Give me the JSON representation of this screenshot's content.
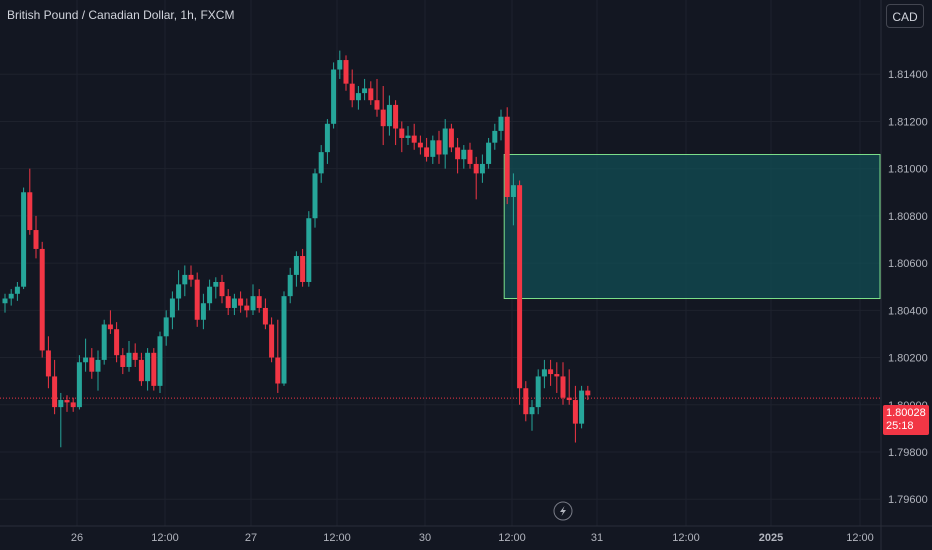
{
  "header": {
    "symbol": "British Pound / Canadian Dollar, 1h, FXCM"
  },
  "currency_button": "CAD",
  "current_price": {
    "value": "1.80028",
    "countdown": "25:18"
  },
  "colors": {
    "up": "#26a69a",
    "down": "#f23645",
    "zone_fill": "#124e54",
    "zone_border": "#7ce08a",
    "background": "#131722"
  },
  "chart_data": {
    "type": "candlestick",
    "x_tick_labels": [
      "26",
      "12:00",
      "27",
      "12:00",
      "30",
      "12:00",
      "31",
      "12:00",
      "2025",
      "12:00"
    ],
    "y_tick_labels": [
      "1.81400",
      "1.81200",
      "1.81000",
      "1.80800",
      "1.80600",
      "1.80400",
      "1.80200",
      "1.80000",
      "1.79800",
      "1.79600"
    ],
    "ylim": [
      1.7955,
      1.816
    ],
    "last_price_line": 1.80028,
    "zone": {
      "top": 1.8106,
      "bottom": 1.8045,
      "start_candle": 81
    },
    "candles": [
      [
        1.8043,
        1.8047,
        1.8039,
        1.8045
      ],
      [
        1.8045,
        1.8049,
        1.8042,
        1.8047
      ],
      [
        1.8047,
        1.8052,
        1.8044,
        1.805
      ],
      [
        1.805,
        1.8092,
        1.8049,
        1.809
      ],
      [
        1.809,
        1.81,
        1.8072,
        1.8074
      ],
      [
        1.8074,
        1.808,
        1.8062,
        1.8066
      ],
      [
        1.8066,
        1.8069,
        1.802,
        1.8023
      ],
      [
        1.8023,
        1.8029,
        1.8007,
        1.8012
      ],
      [
        1.8012,
        1.8019,
        1.7996,
        1.7999
      ],
      [
        1.7999,
        1.8005,
        1.7982,
        1.8002
      ],
      [
        1.8002,
        1.8004,
        1.7997,
        1.8001
      ],
      [
        1.8001,
        1.8003,
        1.7997,
        1.7999
      ],
      [
        1.7999,
        1.8021,
        1.7998,
        1.8018
      ],
      [
        1.8018,
        1.8028,
        1.8014,
        1.802
      ],
      [
        1.802,
        1.8024,
        1.8011,
        1.8014
      ],
      [
        1.8014,
        1.8023,
        1.8006,
        1.8019
      ],
      [
        1.8019,
        1.8036,
        1.8017,
        1.8034
      ],
      [
        1.8034,
        1.804,
        1.803,
        1.8032
      ],
      [
        1.8032,
        1.8035,
        1.8018,
        1.8021
      ],
      [
        1.8021,
        1.8024,
        1.8013,
        1.8016
      ],
      [
        1.8016,
        1.8027,
        1.8014,
        1.8022
      ],
      [
        1.8022,
        1.8026,
        1.8016,
        1.8019
      ],
      [
        1.8019,
        1.8022,
        1.8008,
        1.801
      ],
      [
        1.801,
        1.8024,
        1.8006,
        1.8022
      ],
      [
        1.8022,
        1.8024,
        1.8006,
        1.8008
      ],
      [
        1.8008,
        1.8031,
        1.8005,
        1.8029
      ],
      [
        1.8029,
        1.804,
        1.8025,
        1.8037
      ],
      [
        1.8037,
        1.8048,
        1.8032,
        1.8045
      ],
      [
        1.8045,
        1.8057,
        1.804,
        1.8051
      ],
      [
        1.8051,
        1.8059,
        1.8046,
        1.8055
      ],
      [
        1.8055,
        1.8059,
        1.805,
        1.8053
      ],
      [
        1.8053,
        1.8056,
        1.8033,
        1.8036
      ],
      [
        1.8036,
        1.8047,
        1.8032,
        1.8043
      ],
      [
        1.8043,
        1.8053,
        1.804,
        1.805
      ],
      [
        1.805,
        1.8054,
        1.8045,
        1.8052
      ],
      [
        1.8052,
        1.8055,
        1.8043,
        1.8046
      ],
      [
        1.8046,
        1.8049,
        1.8038,
        1.8041
      ],
      [
        1.8041,
        1.8047,
        1.8038,
        1.8045
      ],
      [
        1.8045,
        1.8048,
        1.8039,
        1.8042
      ],
      [
        1.8042,
        1.8045,
        1.8037,
        1.804
      ],
      [
        1.804,
        1.8051,
        1.8038,
        1.8046
      ],
      [
        1.8046,
        1.8049,
        1.8039,
        1.8041
      ],
      [
        1.8041,
        1.8045,
        1.8032,
        1.8034
      ],
      [
        1.8034,
        1.8037,
        1.8018,
        1.802
      ],
      [
        1.802,
        1.8036,
        1.8005,
        1.8009
      ],
      [
        1.8009,
        1.8048,
        1.8008,
        1.8046
      ],
      [
        1.8046,
        1.8058,
        1.8043,
        1.8055
      ],
      [
        1.8055,
        1.8065,
        1.805,
        1.8063
      ],
      [
        1.8063,
        1.8066,
        1.805,
        1.8052
      ],
      [
        1.8052,
        1.8082,
        1.805,
        1.8079
      ],
      [
        1.8079,
        1.81,
        1.8075,
        1.8098
      ],
      [
        1.8098,
        1.811,
        1.8094,
        1.8107
      ],
      [
        1.8107,
        1.8121,
        1.8102,
        1.8119
      ],
      [
        1.8119,
        1.8145,
        1.8117,
        1.8142
      ],
      [
        1.8142,
        1.815,
        1.8138,
        1.8146
      ],
      [
        1.8146,
        1.8148,
        1.8133,
        1.8136
      ],
      [
        1.8136,
        1.8142,
        1.8126,
        1.8129
      ],
      [
        1.8129,
        1.8135,
        1.8125,
        1.8132
      ],
      [
        1.8132,
        1.8138,
        1.8129,
        1.8134
      ],
      [
        1.8134,
        1.8137,
        1.8127,
        1.8129
      ],
      [
        1.8129,
        1.8138,
        1.8122,
        1.8125
      ],
      [
        1.8125,
        1.8135,
        1.811,
        1.8118
      ],
      [
        1.8118,
        1.8131,
        1.8114,
        1.8127
      ],
      [
        1.8127,
        1.8129,
        1.811,
        1.8117
      ],
      [
        1.8117,
        1.812,
        1.8107,
        1.8113
      ],
      [
        1.8113,
        1.8118,
        1.811,
        1.8114
      ],
      [
        1.8114,
        1.8119,
        1.8108,
        1.8111
      ],
      [
        1.8111,
        1.8114,
        1.8106,
        1.8109
      ],
      [
        1.8109,
        1.8113,
        1.8103,
        1.8105
      ],
      [
        1.8105,
        1.8114,
        1.8102,
        1.8112
      ],
      [
        1.8112,
        1.8116,
        1.8102,
        1.8106
      ],
      [
        1.8106,
        1.8121,
        1.81,
        1.8117
      ],
      [
        1.8117,
        1.8119,
        1.8107,
        1.8109
      ],
      [
        1.8109,
        1.8113,
        1.8098,
        1.8104
      ],
      [
        1.8104,
        1.811,
        1.81,
        1.8108
      ],
      [
        1.8108,
        1.8111,
        1.81,
        1.8102
      ],
      [
        1.8102,
        1.8105,
        1.8087,
        1.8098
      ],
      [
        1.8098,
        1.8106,
        1.8094,
        1.8102
      ],
      [
        1.8102,
        1.8113,
        1.81,
        1.8111
      ],
      [
        1.8111,
        1.8119,
        1.8108,
        1.8116
      ],
      [
        1.8116,
        1.8125,
        1.8112,
        1.8122
      ],
      [
        1.8122,
        1.8126,
        1.8085,
        1.8088
      ],
      [
        1.8088,
        1.8098,
        1.8076,
        1.8093
      ],
      [
        1.8093,
        1.8095,
        1.8,
        1.8007
      ],
      [
        1.8007,
        1.801,
        1.7993,
        1.7996
      ],
      [
        1.7996,
        1.8002,
        1.7989,
        1.7999
      ],
      [
        1.7999,
        1.8015,
        1.7996,
        1.8012
      ],
      [
        1.8012,
        1.8019,
        1.8007,
        1.8015
      ],
      [
        1.8015,
        1.8019,
        1.8008,
        1.8013
      ],
      [
        1.8013,
        1.8018,
        1.8005,
        1.8012
      ],
      [
        1.8012,
        1.8018,
        1.8,
        1.8003
      ],
      [
        1.8003,
        1.8015,
        1.8,
        1.8002
      ],
      [
        1.8002,
        1.8008,
        1.7984,
        1.7992
      ],
      [
        1.7992,
        1.8008,
        1.799,
        1.8006
      ],
      [
        1.8006,
        1.8008,
        1.8002,
        1.8004
      ]
    ]
  }
}
